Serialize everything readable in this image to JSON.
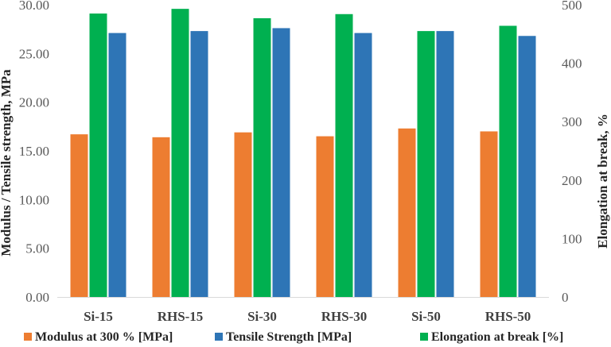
{
  "chart_data": {
    "type": "bar",
    "categories": [
      "Si-15",
      "RHS-15",
      "Si-30",
      "RHS-30",
      "Si-50",
      "RHS-50"
    ],
    "series": [
      {
        "name": "Modulus at 300 % [MPa]",
        "axis": "left",
        "color": "#ED7D31",
        "values": [
          16.7,
          16.4,
          16.9,
          16.5,
          17.3,
          17.0
        ]
      },
      {
        "name": "Elongation at break [%]",
        "axis": "right",
        "color": "#00B050",
        "values": [
          485,
          493,
          477,
          484,
          455,
          464
        ]
      },
      {
        "name": "Tensile Strength  [MPa]",
        "axis": "left",
        "color": "#2E75B6",
        "values": [
          27.1,
          27.3,
          27.6,
          27.1,
          27.3,
          26.8
        ]
      }
    ],
    "legend_order": [
      0,
      2,
      1
    ],
    "ylabel_left": "Modulus / Tensile strength, MPa",
    "ylabel_right": "Elongation at break, %",
    "ylim_left": [
      0,
      30
    ],
    "ylim_right": [
      0,
      500
    ],
    "yticks_left": [
      "0.00",
      "5.00",
      "10.00",
      "15.00",
      "20.00",
      "25.00",
      "30.00"
    ],
    "yticks_right": [
      "0",
      "100",
      "200",
      "300",
      "400",
      "500"
    ],
    "legend_position": "bottom"
  }
}
